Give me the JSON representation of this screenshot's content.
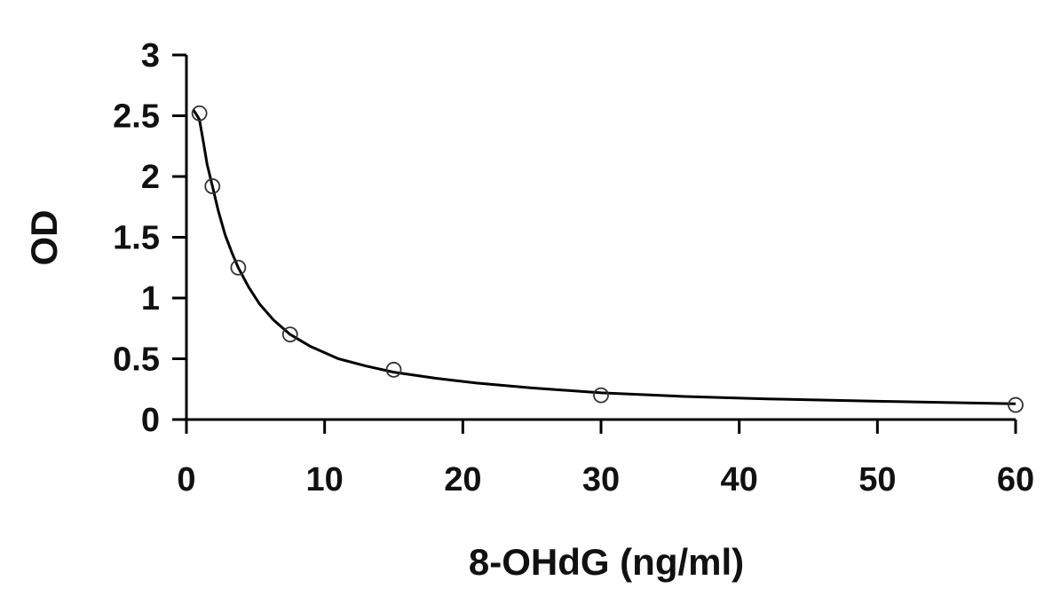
{
  "chart_data": {
    "type": "scatter",
    "title": "",
    "xlabel": "8-OHdG (ng/ml)",
    "ylabel": "OD",
    "xlim": [
      0,
      60
    ],
    "ylim": [
      0,
      3
    ],
    "x_ticks": [
      0,
      10,
      20,
      30,
      40,
      50,
      60
    ],
    "y_ticks": [
      0,
      0.5,
      1,
      1.5,
      2,
      2.5,
      3
    ],
    "x_tick_labels": [
      "0",
      "10",
      "20",
      "30",
      "40",
      "50",
      "60"
    ],
    "y_tick_labels": [
      "0",
      "0.5",
      "1",
      "1.5",
      "2",
      "2.5",
      "3"
    ],
    "grid": false,
    "legend": "none",
    "series": [
      {
        "marker": "open-circle",
        "x": [
          0.94,
          1.88,
          3.75,
          7.5,
          15,
          30,
          60
        ],
        "y": [
          2.52,
          1.92,
          1.25,
          0.7,
          0.41,
          0.2,
          0.12
        ]
      }
    ],
    "fit_curve": {
      "x": [
        0.5,
        0.94,
        1.2,
        1.5,
        1.88,
        2.3,
        2.8,
        3.3,
        3.75,
        4.5,
        5.3,
        6.3,
        7.5,
        9,
        11,
        13,
        15,
        18,
        21,
        25,
        30,
        36,
        42,
        50,
        60
      ],
      "y": [
        2.55,
        2.47,
        2.3,
        2.1,
        1.92,
        1.72,
        1.52,
        1.37,
        1.25,
        1.09,
        0.95,
        0.82,
        0.7,
        0.6,
        0.5,
        0.44,
        0.39,
        0.34,
        0.3,
        0.26,
        0.22,
        0.19,
        0.17,
        0.15,
        0.13
      ]
    },
    "colors": {
      "axis": "#000000",
      "marker": "#333333",
      "curve": "#000000"
    }
  }
}
